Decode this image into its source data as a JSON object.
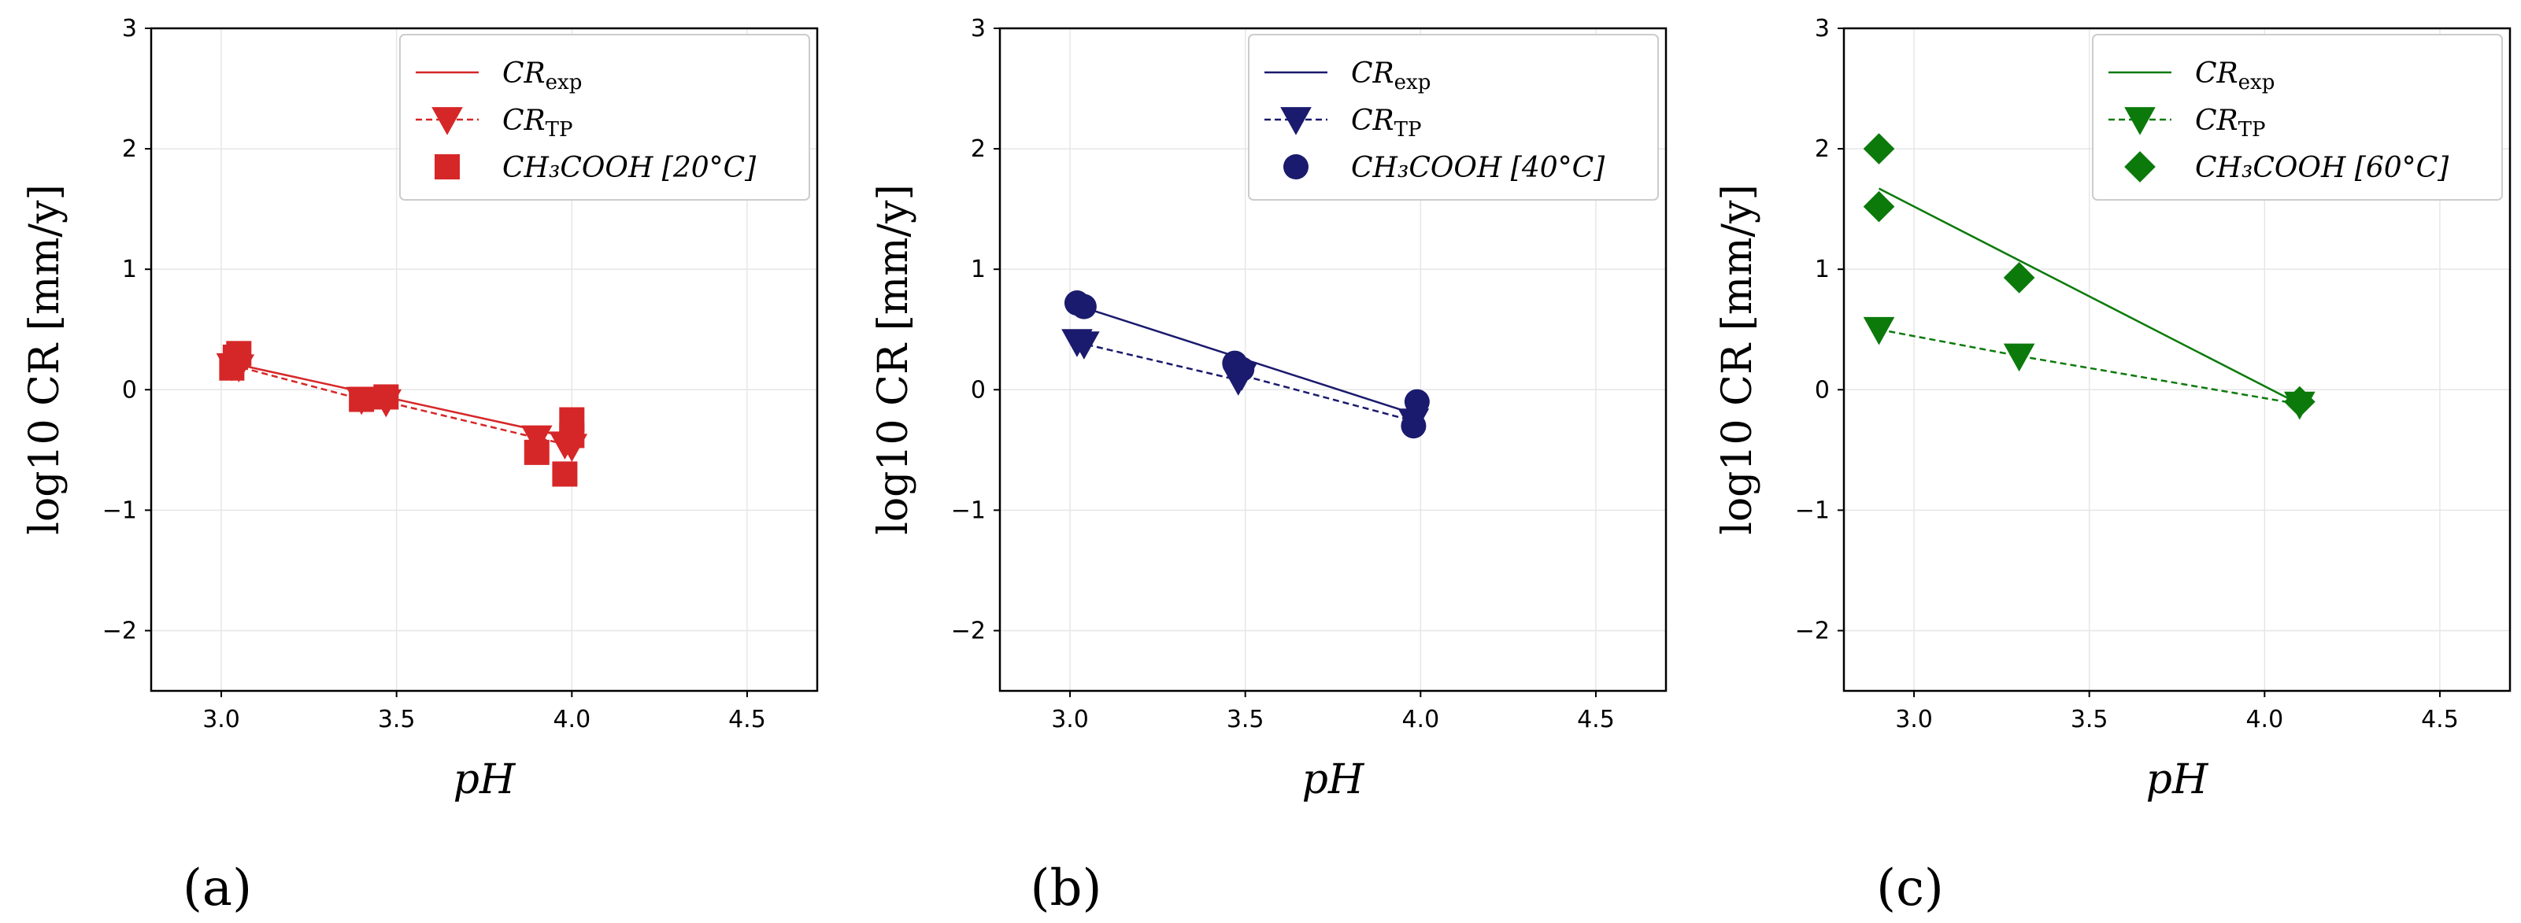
{
  "chart_data": [
    {
      "type": "scatter",
      "panel_label": "(a)",
      "color": "#d62728",
      "marker": "square",
      "xlabel": "pH",
      "ylabel": "log10 CR [mm/y]",
      "xlim": [
        2.8,
        4.7
      ],
      "ylim": [
        -2.5,
        3
      ],
      "xticks": [
        "3.0",
        "3.5",
        "4.0",
        "4.5"
      ],
      "xtick_values": [
        3.0,
        3.5,
        4.0,
        4.5
      ],
      "yticks": [
        "−2",
        "−1",
        "0",
        "1",
        "2",
        "3"
      ],
      "ytick_values": [
        -2,
        -1,
        0,
        1,
        2,
        3
      ],
      "grid": true,
      "legend": {
        "position": "top-right",
        "exp_main": "CR",
        "exp_sub": "exp",
        "tp_main": "CR",
        "tp_sub": "TP",
        "data_label": "CH₃COOH [20°C]"
      },
      "series": [
        {
          "name": "CR_exp",
          "style": "solid-line",
          "x": [
            3.03,
            4.0
          ],
          "y": [
            0.22,
            -0.4
          ]
        },
        {
          "name": "CR_TP",
          "style": "dashed-triangle",
          "x": [
            3.03,
            3.05,
            3.4,
            3.47,
            3.9,
            3.98,
            4.0
          ],
          "y": [
            0.2,
            0.19,
            -0.08,
            -0.1,
            -0.4,
            -0.45,
            -0.47
          ]
        },
        {
          "name": "CH3COOH [20°C]",
          "style": "marker",
          "x": [
            3.03,
            3.04,
            3.05,
            3.4,
            3.47,
            3.9,
            3.98,
            4.0,
            4.0
          ],
          "y": [
            0.18,
            0.27,
            0.3,
            -0.08,
            -0.06,
            -0.52,
            -0.7,
            -0.25,
            -0.38
          ]
        }
      ]
    },
    {
      "type": "scatter",
      "panel_label": "(b)",
      "color": "#1a1a6e",
      "marker": "circle",
      "xlabel": "pH",
      "ylabel": "log10 CR [mm/y]",
      "xlim": [
        2.8,
        4.7
      ],
      "ylim": [
        -2.5,
        3
      ],
      "xticks": [
        "3.0",
        "3.5",
        "4.0",
        "4.5"
      ],
      "xtick_values": [
        3.0,
        3.5,
        4.0,
        4.5
      ],
      "yticks": [
        "−2",
        "−1",
        "0",
        "1",
        "2",
        "3"
      ],
      "ytick_values": [
        -2,
        -1,
        0,
        1,
        2,
        3
      ],
      "grid": true,
      "legend": {
        "position": "top-right",
        "exp_main": "CR",
        "exp_sub": "exp",
        "tp_main": "CR",
        "tp_sub": "TP",
        "data_label": "CH₃COOH [40°C]"
      },
      "series": [
        {
          "name": "CR_exp",
          "style": "solid-line",
          "x": [
            3.02,
            3.98
          ],
          "y": [
            0.7,
            -0.2
          ]
        },
        {
          "name": "CR_TP",
          "style": "dashed-triangle",
          "x": [
            3.02,
            3.04,
            3.48,
            3.49,
            3.98
          ],
          "y": [
            0.4,
            0.38,
            0.08,
            0.12,
            -0.26
          ]
        },
        {
          "name": "CH3COOH [40°C]",
          "style": "marker",
          "x": [
            3.02,
            3.04,
            3.47,
            3.49,
            3.98,
            3.99
          ],
          "y": [
            0.72,
            0.69,
            0.22,
            0.17,
            -0.3,
            -0.1
          ]
        }
      ]
    },
    {
      "type": "scatter",
      "panel_label": "(c)",
      "color": "#0b7a0b",
      "marker": "diamond",
      "xlabel": "pH",
      "ylabel": "log10 CR [mm/y]",
      "xlim": [
        2.8,
        4.7
      ],
      "ylim": [
        -2.5,
        3
      ],
      "xticks": [
        "3.0",
        "3.5",
        "4.0",
        "4.5"
      ],
      "xtick_values": [
        3.0,
        3.5,
        4.0,
        4.5
      ],
      "yticks": [
        "−2",
        "−1",
        "0",
        "1",
        "2",
        "3"
      ],
      "ytick_values": [
        -2,
        -1,
        0,
        1,
        2,
        3
      ],
      "grid": true,
      "legend": {
        "position": "top-right",
        "exp_main": "CR",
        "exp_sub": "exp",
        "tp_main": "CR",
        "tp_sub": "TP",
        "data_label": "CH₃COOH [60°C]"
      },
      "series": [
        {
          "name": "CR_exp",
          "style": "solid-line",
          "x": [
            2.9,
            4.1
          ],
          "y": [
            1.67,
            -0.12
          ]
        },
        {
          "name": "CR_TP",
          "style": "dashed-triangle",
          "x": [
            2.9,
            3.3,
            4.1
          ],
          "y": [
            0.5,
            0.28,
            -0.12
          ]
        },
        {
          "name": "CH3COOH [60°C]",
          "style": "marker",
          "x": [
            2.9,
            2.9,
            3.3,
            4.1
          ],
          "y": [
            2.0,
            1.52,
            0.93,
            -0.1
          ]
        }
      ]
    }
  ]
}
